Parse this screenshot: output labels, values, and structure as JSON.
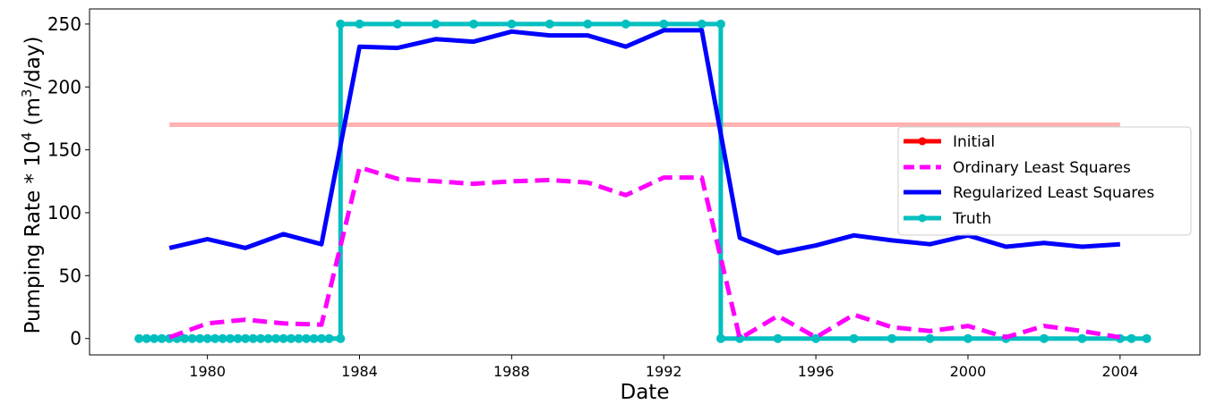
{
  "chart_data": {
    "type": "line",
    "xlabel": "Date",
    "ylabel": "Pumping Rate * 10",
    "ylabel_sup1": "4",
    "ylabel_mid": " (m",
    "ylabel_sup2": "3",
    "ylabel_end": "/day)",
    "xlim": [
      1976.9,
      2006.1
    ],
    "ylim": [
      -13,
      262
    ],
    "x_ticks": [
      1980,
      1984,
      1988,
      1992,
      1996,
      2000,
      2004
    ],
    "y_ticks": [
      0,
      50,
      100,
      150,
      200,
      250
    ],
    "grid": false,
    "legend_position": "center-right",
    "legend_order": [
      "initial",
      "ols",
      "rls",
      "truth"
    ],
    "series": [
      {
        "id": "initial",
        "name": "Initial",
        "color": "#ff0000",
        "line_color": "#ffb0b0",
        "style": "solid",
        "marker": "circle",
        "x": [
          1979,
          2004
        ],
        "y": [
          170,
          170
        ]
      },
      {
        "id": "ols",
        "name": "Ordinary Least Squares",
        "color": "#ff00ff",
        "style": "dashed",
        "marker": "none",
        "x": [
          1979,
          1980,
          1981,
          1982,
          1983,
          1984,
          1985,
          1986,
          1987,
          1988,
          1989,
          1990,
          1991,
          1992,
          1993,
          1994,
          1995,
          1996,
          1997,
          1998,
          1999,
          2000,
          2001,
          2002,
          2003,
          2004
        ],
        "y": [
          1,
          12,
          15,
          12,
          11,
          136,
          127,
          125,
          123,
          125,
          126,
          124,
          114,
          128,
          128,
          0,
          18,
          1,
          19,
          9,
          6,
          10,
          1,
          10,
          6,
          1
        ]
      },
      {
        "id": "rls",
        "name": "Regularized Least Squares",
        "color": "#0000ff",
        "style": "solid",
        "marker": "none",
        "x": [
          1979,
          1980,
          1981,
          1982,
          1983,
          1984,
          1985,
          1986,
          1987,
          1988,
          1989,
          1990,
          1991,
          1992,
          1993,
          1994,
          1995,
          1996,
          1997,
          1998,
          1999,
          2000,
          2001,
          2002,
          2003,
          2004
        ],
        "y": [
          72,
          79,
          72,
          83,
          75,
          232,
          231,
          238,
          236,
          244,
          241,
          241,
          232,
          245,
          245,
          80,
          68,
          74,
          82,
          78,
          75,
          82,
          73,
          76,
          73,
          75
        ]
      },
      {
        "id": "truth",
        "name": "Truth",
        "color": "#00bfbf",
        "style": "solid",
        "marker": "circle",
        "x": [
          1978.2,
          1978.4,
          1978.6,
          1978.8,
          1979.0,
          1979.2,
          1979.4,
          1979.6,
          1979.8,
          1980.0,
          1980.2,
          1980.4,
          1980.6,
          1980.8,
          1981.0,
          1981.2,
          1981.4,
          1981.6,
          1981.8,
          1982.0,
          1982.2,
          1982.4,
          1982.6,
          1982.8,
          1983.0,
          1983.2,
          1983.5,
          1983.5,
          1984.0,
          1985.0,
          1986.0,
          1987.0,
          1988.0,
          1989.0,
          1990.0,
          1991.0,
          1992.0,
          1993.0,
          1993.5,
          1993.5,
          1994.0,
          1995.0,
          1996.0,
          1997.0,
          1998.0,
          1999.0,
          2000.0,
          2001.0,
          2002.0,
          2003.0,
          2004.0,
          2004.3,
          2004.7
        ],
        "y": [
          0,
          0,
          0,
          0,
          0,
          0,
          0,
          0,
          0,
          0,
          0,
          0,
          0,
          0,
          0,
          0,
          0,
          0,
          0,
          0,
          0,
          0,
          0,
          0,
          0,
          0,
          0,
          250,
          250,
          250,
          250,
          250,
          250,
          250,
          250,
          250,
          250,
          250,
          250,
          0,
          0,
          0,
          0,
          0,
          0,
          0,
          0,
          0,
          0,
          0,
          0,
          0,
          0
        ]
      }
    ]
  }
}
